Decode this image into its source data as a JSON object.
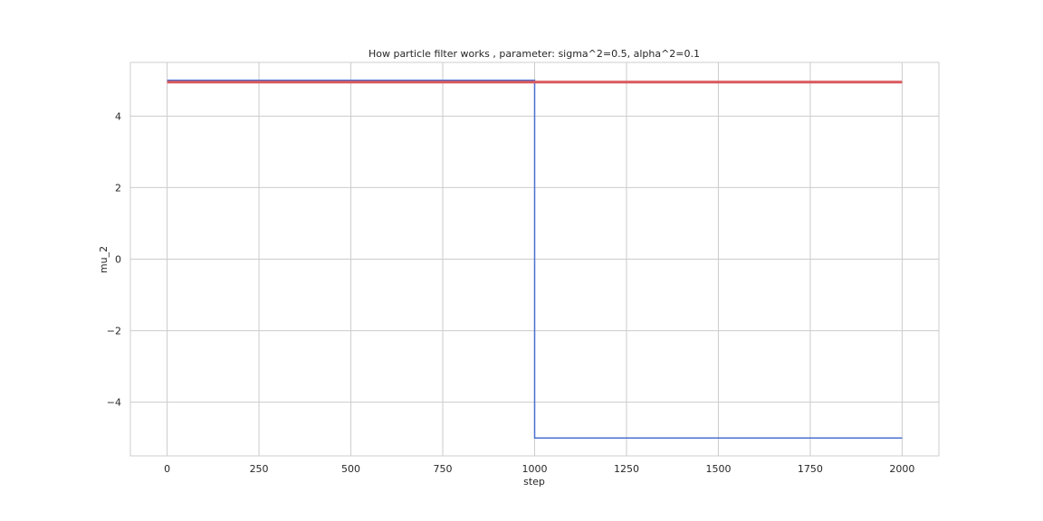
{
  "chart_data": {
    "type": "line",
    "title": "How particle filter works , parameter: sigma^2=0.5, alpha^2=0.1",
    "xlabel": "step",
    "ylabel": "mu_2",
    "xlim": [
      -100,
      2100
    ],
    "ylim": [
      -5.5,
      5.5
    ],
    "x_ticks": [
      0,
      250,
      500,
      750,
      1000,
      1250,
      1500,
      1750,
      2000
    ],
    "y_ticks": [
      -4,
      -2,
      0,
      2,
      4
    ],
    "grid": true,
    "legend": "none",
    "series": [
      {
        "color": "#4a6fd0",
        "line_width": 1.5,
        "points": [
          [
            0,
            5
          ],
          [
            1000,
            5
          ],
          [
            1000,
            -5
          ],
          [
            2000,
            -5
          ]
        ]
      },
      {
        "color": "#d9595c",
        "line_width": 3,
        "points": [
          [
            0,
            4.95
          ],
          [
            2000,
            4.95
          ]
        ]
      }
    ]
  },
  "colors": {
    "grid": "#cccccc",
    "frame": "#cccccc",
    "text": "#262626"
  }
}
